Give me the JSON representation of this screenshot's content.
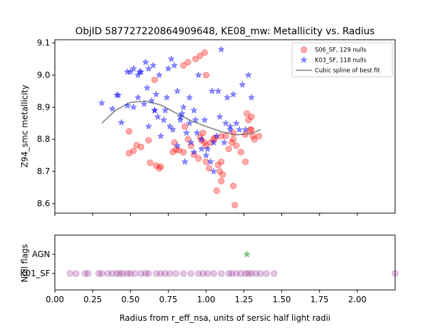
{
  "chart_data": [
    {
      "type": "scatter",
      "title": "ObjID 587727220864909648, KE08_mw: Metallicity vs. Radius",
      "xlabel": "",
      "ylabel": "Z94_smc metallicity",
      "xlim": [
        0.0,
        2.25
      ],
      "ylim": [
        8.57,
        9.11
      ],
      "yticks": [
        "8.6",
        "8.7",
        "8.8",
        "8.9",
        "9.0",
        "9.1"
      ],
      "xticks": [
        0.0,
        0.25,
        0.5,
        0.75,
        1.0,
        1.25,
        1.5,
        1.75,
        2.0
      ],
      "grid": false,
      "legend": "upper right",
      "series": [
        {
          "name": "S06_SF, 129 nulls",
          "marker": "circle",
          "color": "#ff0000",
          "points": [
            [
              0.49,
              8.825
            ],
            [
              0.49,
              8.757
            ],
            [
              0.54,
              8.782
            ],
            [
              0.52,
              8.764
            ],
            [
              0.57,
              8.776
            ],
            [
              0.62,
              8.797
            ],
            [
              0.63,
              8.727
            ],
            [
              0.67,
              8.718
            ],
            [
              0.69,
              8.71
            ],
            [
              0.7,
              8.715
            ],
            [
              0.79,
              8.79
            ],
            [
              0.8,
              8.768
            ],
            [
              0.82,
              8.766
            ],
            [
              0.85,
              8.76
            ],
            [
              0.88,
              8.8
            ],
            [
              0.9,
              8.78
            ],
            [
              0.92,
              8.752
            ],
            [
              0.95,
              8.74
            ],
            [
              0.96,
              8.808
            ],
            [
              0.97,
              8.797
            ],
            [
              0.98,
              8.82
            ],
            [
              0.99,
              8.79
            ],
            [
              1.0,
              8.78
            ],
            [
              1.0,
              8.73
            ],
            [
              1.02,
              8.71
            ],
            [
              1.03,
              8.79
            ],
            [
              1.05,
              8.8
            ],
            [
              1.06,
              8.805
            ],
            [
              1.08,
              8.72
            ],
            [
              1.09,
              8.7
            ],
            [
              1.1,
              8.67
            ],
            [
              1.1,
              8.73
            ],
            [
              1.11,
              8.69
            ],
            [
              1.13,
              8.81
            ],
            [
              1.15,
              8.77
            ],
            [
              1.18,
              8.82
            ],
            [
              1.18,
              8.8
            ],
            [
              1.19,
              8.595
            ],
            [
              1.18,
              8.655
            ],
            [
              1.17,
              8.79
            ],
            [
              1.23,
              8.76
            ],
            [
              1.26,
              8.815
            ],
            [
              1.26,
              8.73
            ],
            [
              1.27,
              8.88
            ],
            [
              1.28,
              8.86
            ],
            [
              1.29,
              8.83
            ],
            [
              1.3,
              8.87
            ],
            [
              1.3,
              8.83
            ],
            [
              1.31,
              8.81
            ],
            [
              1.32,
              8.8
            ],
            [
              1.35,
              8.81
            ],
            [
              1.07,
              8.64
            ],
            [
              0.66,
              8.985
            ],
            [
              0.96,
              9.06
            ],
            [
              0.99,
              9.07
            ],
            [
              0.93,
              9.05
            ],
            [
              0.85,
              9.03
            ],
            [
              0.88,
              9.04
            ],
            [
              1.0,
              9.0
            ],
            [
              0.78,
              8.76
            ],
            [
              0.86,
              8.84
            ],
            [
              1.1,
              8.81
            ],
            [
              1.2,
              8.78
            ]
          ]
        },
        {
          "name": "K03_SF, 118 nulls",
          "marker": "star",
          "color": "#0000ff",
          "points": [
            [
              0.31,
              8.913
            ],
            [
              0.38,
              8.895
            ],
            [
              0.41,
              8.938
            ],
            [
              0.44,
              8.852
            ],
            [
              0.48,
              8.905
            ],
            [
              0.5,
              9.01
            ],
            [
              0.52,
              8.9
            ],
            [
              0.55,
              9.0
            ],
            [
              0.57,
              9.01
            ],
            [
              0.6,
              9.04
            ],
            [
              0.62,
              9.02
            ],
            [
              0.64,
              8.92
            ],
            [
              0.66,
              8.89
            ],
            [
              0.67,
              8.94
            ],
            [
              0.69,
              9.0
            ],
            [
              0.72,
              8.86
            ],
            [
              0.75,
              9.02
            ],
            [
              0.77,
              9.05
            ],
            [
              0.79,
              9.03
            ],
            [
              0.81,
              8.95
            ],
            [
              0.83,
              8.87
            ],
            [
              0.85,
              8.9
            ],
            [
              0.87,
              8.82
            ],
            [
              0.89,
              8.85
            ],
            [
              0.9,
              8.79
            ],
            [
              0.92,
              8.76
            ],
            [
              0.94,
              8.82
            ],
            [
              0.97,
              8.77
            ],
            [
              0.99,
              8.86
            ],
            [
              1.01,
              8.77
            ],
            [
              1.03,
              8.73
            ],
            [
              1.05,
              8.79
            ],
            [
              1.07,
              8.81
            ],
            [
              1.09,
              8.87
            ],
            [
              1.12,
              8.79
            ],
            [
              1.14,
              8.93
            ],
            [
              1.16,
              8.84
            ],
            [
              1.18,
              8.94
            ],
            [
              1.2,
              8.85
            ],
            [
              1.22,
              8.83
            ],
            [
              1.24,
              8.97
            ],
            [
              1.26,
              8.83
            ],
            [
              1.28,
              9.0
            ],
            [
              1.3,
              8.93
            ],
            [
              0.66,
              8.89
            ],
            [
              0.61,
              8.96
            ],
            [
              0.52,
              9.02
            ],
            [
              0.73,
              8.89
            ],
            [
              0.83,
              8.86
            ],
            [
              0.95,
              9.0
            ],
            [
              1.04,
              8.95
            ],
            [
              1.1,
              9.08
            ],
            [
              0.42,
              8.937
            ],
            [
              0.48,
              9.01
            ],
            [
              0.59,
              8.91
            ],
            [
              0.55,
              8.93
            ],
            [
              0.62,
              8.84
            ],
            [
              0.7,
              8.81
            ],
            [
              0.78,
              8.83
            ],
            [
              0.86,
              8.73
            ],
            [
              0.93,
              8.86
            ],
            [
              1.0,
              8.75
            ],
            [
              1.08,
              8.95
            ],
            [
              1.16,
              8.83
            ],
            [
              0.56,
              9.01
            ],
            [
              0.65,
              9.03
            ],
            [
              0.74,
              8.93
            ],
            [
              0.81,
              8.78
            ],
            [
              0.89,
              8.93
            ],
            [
              0.97,
              8.8
            ],
            [
              1.05,
              8.7
            ],
            [
              1.13,
              8.85
            ],
            [
              0.68,
              8.87
            ],
            [
              0.76,
              8.84
            ],
            [
              0.84,
              8.88
            ],
            [
              0.92,
              8.89
            ]
          ]
        },
        {
          "name": "Cubic spline of best fit",
          "marker": "line",
          "color": "#808080",
          "points": [
            [
              0.31,
              8.85
            ],
            [
              0.4,
              8.89
            ],
            [
              0.5,
              8.915
            ],
            [
              0.6,
              8.919
            ],
            [
              0.7,
              8.907
            ],
            [
              0.8,
              8.882
            ],
            [
              0.9,
              8.858
            ],
            [
              1.0,
              8.84
            ],
            [
              1.1,
              8.824
            ],
            [
              1.2,
              8.814
            ],
            [
              1.3,
              8.818
            ],
            [
              1.36,
              8.83
            ]
          ]
        }
      ]
    },
    {
      "type": "scatter",
      "title": "",
      "xlabel": "Radius from r_eff_nsa, units of sersic half light radii",
      "ylabel": "Null flags",
      "xlim": [
        0.0,
        2.25
      ],
      "xticks": [
        "0.00",
        "0.25",
        "0.50",
        "0.75",
        "1.00",
        "1.25",
        "1.50",
        "1.75",
        "2.00"
      ],
      "categories": [
        "K01_SF",
        "AGN"
      ],
      "series": [
        {
          "name": "K01_SF",
          "marker": "circle",
          "color": "#800080",
          "x": [
            0.1,
            0.14,
            0.2,
            0.22,
            0.29,
            0.31,
            0.35,
            0.38,
            0.41,
            0.43,
            0.45,
            0.48,
            0.5,
            0.53,
            0.57,
            0.6,
            0.62,
            0.67,
            0.7,
            0.73,
            0.76,
            0.8,
            0.85,
            0.9,
            0.95,
            0.98,
            1.01,
            1.05,
            1.1,
            1.15,
            1.17,
            1.2,
            1.23,
            1.26,
            1.28,
            1.3,
            1.33,
            1.36,
            1.4,
            1.45,
            2.25
          ],
          "y": "K01_SF"
        },
        {
          "name": "AGN",
          "marker": "star",
          "color": "#008000",
          "x": [
            1.27
          ],
          "y": "AGN"
        }
      ]
    }
  ]
}
